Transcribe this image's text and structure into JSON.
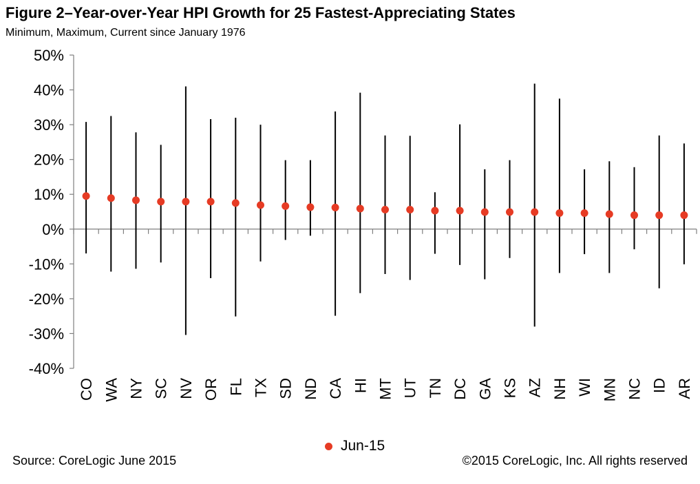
{
  "header": {
    "title": "Figure 2–Year-over-Year HPI Growth for 25 Fastest-Appreciating States",
    "subtitle": "Minimum, Maximum, Current since January 1976"
  },
  "footer": {
    "source": "Source: CoreLogic  June 2015",
    "copyright": "©2015 CoreLogic, Inc. All rights reserved"
  },
  "colors": {
    "current_marker": "#e63b24",
    "range_line": "#000000",
    "axis": "#7f7f7f"
  },
  "chart_data": {
    "type": "scatter",
    "title": "Figure 2–Year-over-Year HPI Growth for 25 Fastest-Appreciating States",
    "subtitle": "Minimum, Maximum, Current since January 1976",
    "xlabel": "",
    "ylabel": "",
    "ylim": [
      -40,
      50
    ],
    "ytick_step": 10,
    "ytick_labels": [
      "-40%",
      "-30%",
      "-20%",
      "-10%",
      "0%",
      "10%",
      "20%",
      "30%",
      "40%",
      "50%"
    ],
    "grid": false,
    "legend_position": "bottom",
    "categories": [
      "CO",
      "WA",
      "NY",
      "SC",
      "NV",
      "OR",
      "FL",
      "TX",
      "SD",
      "ND",
      "CA",
      "HI",
      "MT",
      "UT",
      "TN",
      "DC",
      "GA",
      "KS",
      "AZ",
      "NH",
      "WI",
      "MN",
      "NC",
      "ID",
      "AR"
    ],
    "series": [
      {
        "name": "Jun-15",
        "values": [
          9.5,
          8.9,
          8.3,
          7.9,
          7.9,
          7.9,
          7.5,
          6.9,
          6.6,
          6.3,
          6.2,
          5.9,
          5.6,
          5.6,
          5.3,
          5.3,
          4.9,
          4.9,
          4.9,
          4.6,
          4.6,
          4.3,
          4.0,
          4.0,
          4.0
        ]
      }
    ],
    "maximum": [
      30.8,
      32.5,
      27.8,
      24.2,
      41.0,
      31.6,
      32.0,
      30.0,
      19.8,
      19.8,
      33.8,
      39.2,
      26.9,
      26.8,
      10.6,
      30.1,
      17.2,
      19.8,
      41.8,
      37.5,
      17.2,
      19.5,
      17.8,
      26.9,
      24.6
    ],
    "minimum": [
      -7.0,
      -12.2,
      -11.4,
      -9.6,
      -30.4,
      -14.1,
      -25.1,
      -9.3,
      -3.1,
      -1.9,
      -24.9,
      -18.4,
      -12.9,
      -14.6,
      -7.1,
      -10.3,
      -14.4,
      -8.3,
      -28.0,
      -12.6,
      -7.2,
      -12.6,
      -5.8,
      -17.0,
      -10.1
    ]
  }
}
